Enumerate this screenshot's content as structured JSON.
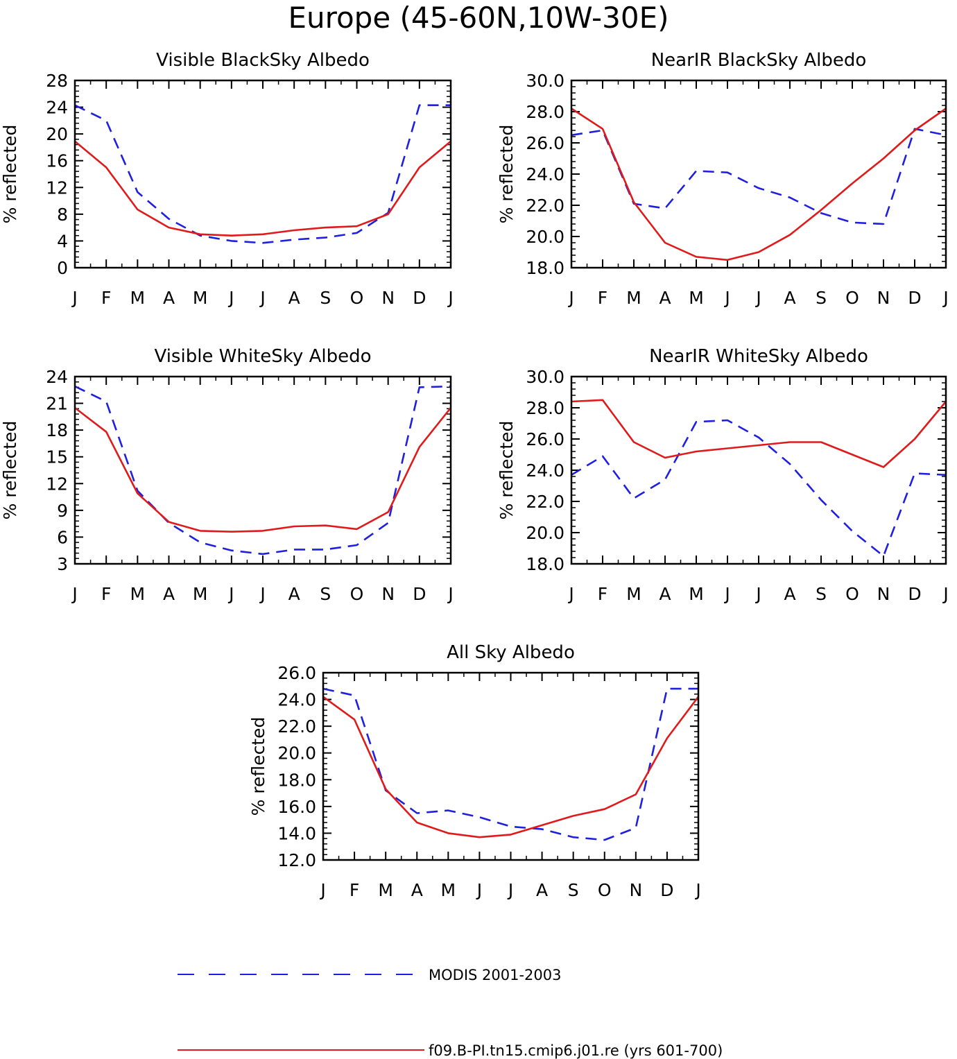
{
  "figure": {
    "title": "Europe (45-60N,10W-30E)"
  },
  "legend": [
    {
      "label": "MODIS 2001-2003",
      "color": "#1f1fe0",
      "style": "dashed"
    },
    {
      "label": "f09.B-PI.tn15.cmip6.j01.re (yrs 601-700)",
      "color": "#e01a1a",
      "style": "solid"
    }
  ],
  "chart_data": [
    {
      "type": "line",
      "title": "Visible BlackSky Albedo",
      "xlabel": "",
      "ylabel": "% reflected",
      "categories": [
        "J",
        "F",
        "M",
        "A",
        "M",
        "J",
        "J",
        "A",
        "S",
        "O",
        "N",
        "D",
        "J"
      ],
      "ylim": [
        0,
        28
      ],
      "yticks": [
        "0",
        "4",
        "8",
        "12",
        "16",
        "20",
        "24",
        "28"
      ],
      "series": [
        {
          "name": "MODIS 2001-2003",
          "values": [
            24.3,
            22.0,
            11.3,
            7.3,
            4.8,
            4.0,
            3.7,
            4.2,
            4.5,
            5.2,
            8.2,
            24.3,
            24.3
          ]
        },
        {
          "name": "f09.B-PI.tn15.cmip6.j01.re (yrs 601-700)",
          "values": [
            18.9,
            15.0,
            8.7,
            6.0,
            5.0,
            4.8,
            5.0,
            5.6,
            6.0,
            6.2,
            8.0,
            15.0,
            18.9
          ]
        }
      ]
    },
    {
      "type": "line",
      "title": "NearIR BlackSky Albedo",
      "xlabel": "",
      "ylabel": "% reflected",
      "categories": [
        "J",
        "F",
        "M",
        "A",
        "M",
        "J",
        "J",
        "A",
        "S",
        "O",
        "N",
        "D",
        "J"
      ],
      "ylim": [
        18,
        30
      ],
      "yticks": [
        "18.0",
        "20.0",
        "22.0",
        "24.0",
        "26.0",
        "28.0",
        "30.0"
      ],
      "series": [
        {
          "name": "MODIS 2001-2003",
          "values": [
            26.5,
            26.8,
            22.1,
            21.8,
            24.2,
            24.1,
            23.1,
            22.5,
            21.5,
            20.9,
            20.8,
            26.9,
            26.5
          ]
        },
        {
          "name": "f09.B-PI.tn15.cmip6.j01.re (yrs 601-700)",
          "values": [
            28.2,
            26.9,
            22.2,
            19.6,
            18.7,
            18.5,
            19.0,
            20.1,
            21.7,
            23.4,
            25.0,
            26.8,
            28.2
          ]
        }
      ]
    },
    {
      "type": "line",
      "title": "Visible WhiteSky Albedo",
      "xlabel": "",
      "ylabel": "% reflected",
      "categories": [
        "J",
        "F",
        "M",
        "A",
        "M",
        "J",
        "J",
        "A",
        "S",
        "O",
        "N",
        "D",
        "J"
      ],
      "ylim": [
        3,
        24
      ],
      "yticks": [
        "3",
        "6",
        "9",
        "12",
        "15",
        "18",
        "21",
        "24"
      ],
      "series": [
        {
          "name": "MODIS 2001-2003",
          "values": [
            22.9,
            21.2,
            11.2,
            7.6,
            5.4,
            4.5,
            4.1,
            4.6,
            4.6,
            5.1,
            7.6,
            22.8,
            22.9
          ]
        },
        {
          "name": "f09.B-PI.tn15.cmip6.j01.re (yrs 601-700)",
          "values": [
            20.5,
            17.8,
            10.9,
            7.7,
            6.7,
            6.6,
            6.7,
            7.2,
            7.3,
            6.9,
            8.8,
            16.1,
            20.5
          ]
        }
      ]
    },
    {
      "type": "line",
      "title": "NearIR WhiteSky Albedo",
      "xlabel": "",
      "ylabel": "% reflected",
      "categories": [
        "J",
        "F",
        "M",
        "A",
        "M",
        "J",
        "J",
        "A",
        "S",
        "O",
        "N",
        "D",
        "J"
      ],
      "ylim": [
        18,
        30
      ],
      "yticks": [
        "18.0",
        "20.0",
        "22.0",
        "24.0",
        "26.0",
        "28.0",
        "30.0"
      ],
      "series": [
        {
          "name": "MODIS 2001-2003",
          "values": [
            23.7,
            24.9,
            22.2,
            23.4,
            27.1,
            27.2,
            26.1,
            24.4,
            22.1,
            20.1,
            18.5,
            23.8,
            23.7
          ]
        },
        {
          "name": "f09.B-PI.tn15.cmip6.j01.re (yrs 601-700)",
          "values": [
            28.4,
            28.5,
            25.8,
            24.8,
            25.2,
            25.4,
            25.6,
            25.8,
            25.8,
            25.0,
            24.2,
            26.0,
            28.4
          ]
        }
      ]
    },
    {
      "type": "line",
      "title": "All Sky Albedo",
      "xlabel": "",
      "ylabel": "% reflected",
      "categories": [
        "J",
        "F",
        "M",
        "A",
        "M",
        "J",
        "J",
        "A",
        "S",
        "O",
        "N",
        "D",
        "J"
      ],
      "ylim": [
        12,
        26
      ],
      "yticks": [
        "12.0",
        "14.0",
        "16.0",
        "18.0",
        "20.0",
        "22.0",
        "24.0",
        "26.0"
      ],
      "series": [
        {
          "name": "MODIS 2001-2003",
          "values": [
            24.8,
            24.3,
            17.2,
            15.5,
            15.7,
            15.2,
            14.5,
            14.3,
            13.7,
            13.5,
            14.4,
            24.8,
            24.8
          ]
        },
        {
          "name": "f09.B-PI.tn15.cmip6.j01.re (yrs 601-700)",
          "values": [
            24.2,
            22.5,
            17.3,
            14.8,
            14.0,
            13.7,
            13.9,
            14.6,
            15.3,
            15.8,
            16.9,
            21.1,
            24.2
          ]
        }
      ]
    }
  ]
}
